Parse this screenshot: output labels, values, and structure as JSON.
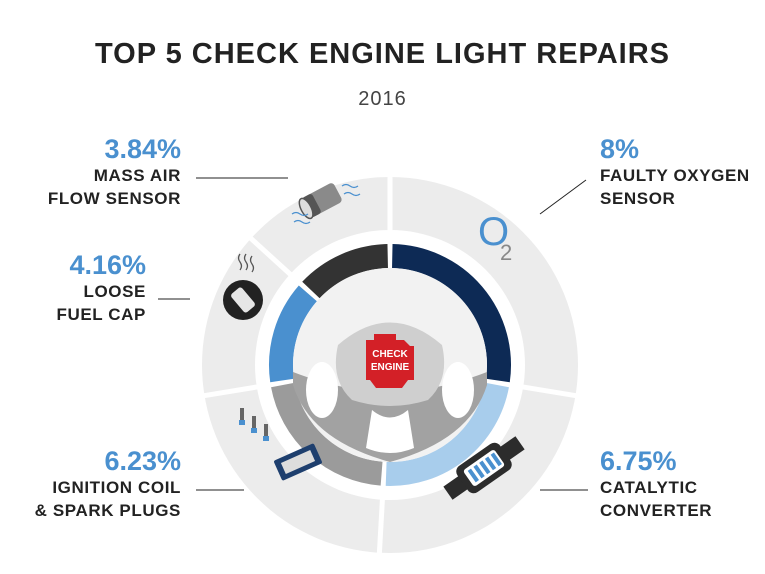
{
  "title": "TOP 5 CHECK ENGINE LIGHT REPAIRS",
  "subtitle": "2016",
  "icons": {
    "o2": "O",
    "o2_sub": "2",
    "engine_line1": "CHECK",
    "engine_line2": "ENGINE"
  },
  "colors": {
    "o2": "#0d2a55",
    "catalytic": "#a8cdec",
    "ignition": "#9b9b9b",
    "fuelcap": "#4a90cf",
    "maf": "#333333",
    "percent_text": "#4a90cf",
    "engine_light": "#d32027"
  },
  "chart_data": {
    "type": "pie",
    "title": "TOP 5 CHECK ENGINE LIGHT REPAIRS",
    "subtitle": "2016",
    "categories": [
      {
        "key": "o2",
        "value": 8,
        "pct_label": "8%",
        "name_lines": [
          "FAULTY OXYGEN",
          "SENSOR"
        ]
      },
      {
        "key": "catalytic",
        "value": 6.75,
        "pct_label": "6.75%",
        "name_lines": [
          "CATALYTIC",
          "CONVERTER"
        ]
      },
      {
        "key": "ignition",
        "value": 6.23,
        "pct_label": "6.23%",
        "name_lines": [
          "IGNITION COIL",
          "& SPARK PLUGS"
        ]
      },
      {
        "key": "fuelcap",
        "value": 4.16,
        "pct_label": "4.16%",
        "name_lines": [
          "LOOSE",
          "FUEL CAP"
        ]
      },
      {
        "key": "maf",
        "value": 3.84,
        "pct_label": "3.84%",
        "name_lines": [
          "MASS AIR",
          "FLOW SENSOR"
        ]
      }
    ]
  }
}
